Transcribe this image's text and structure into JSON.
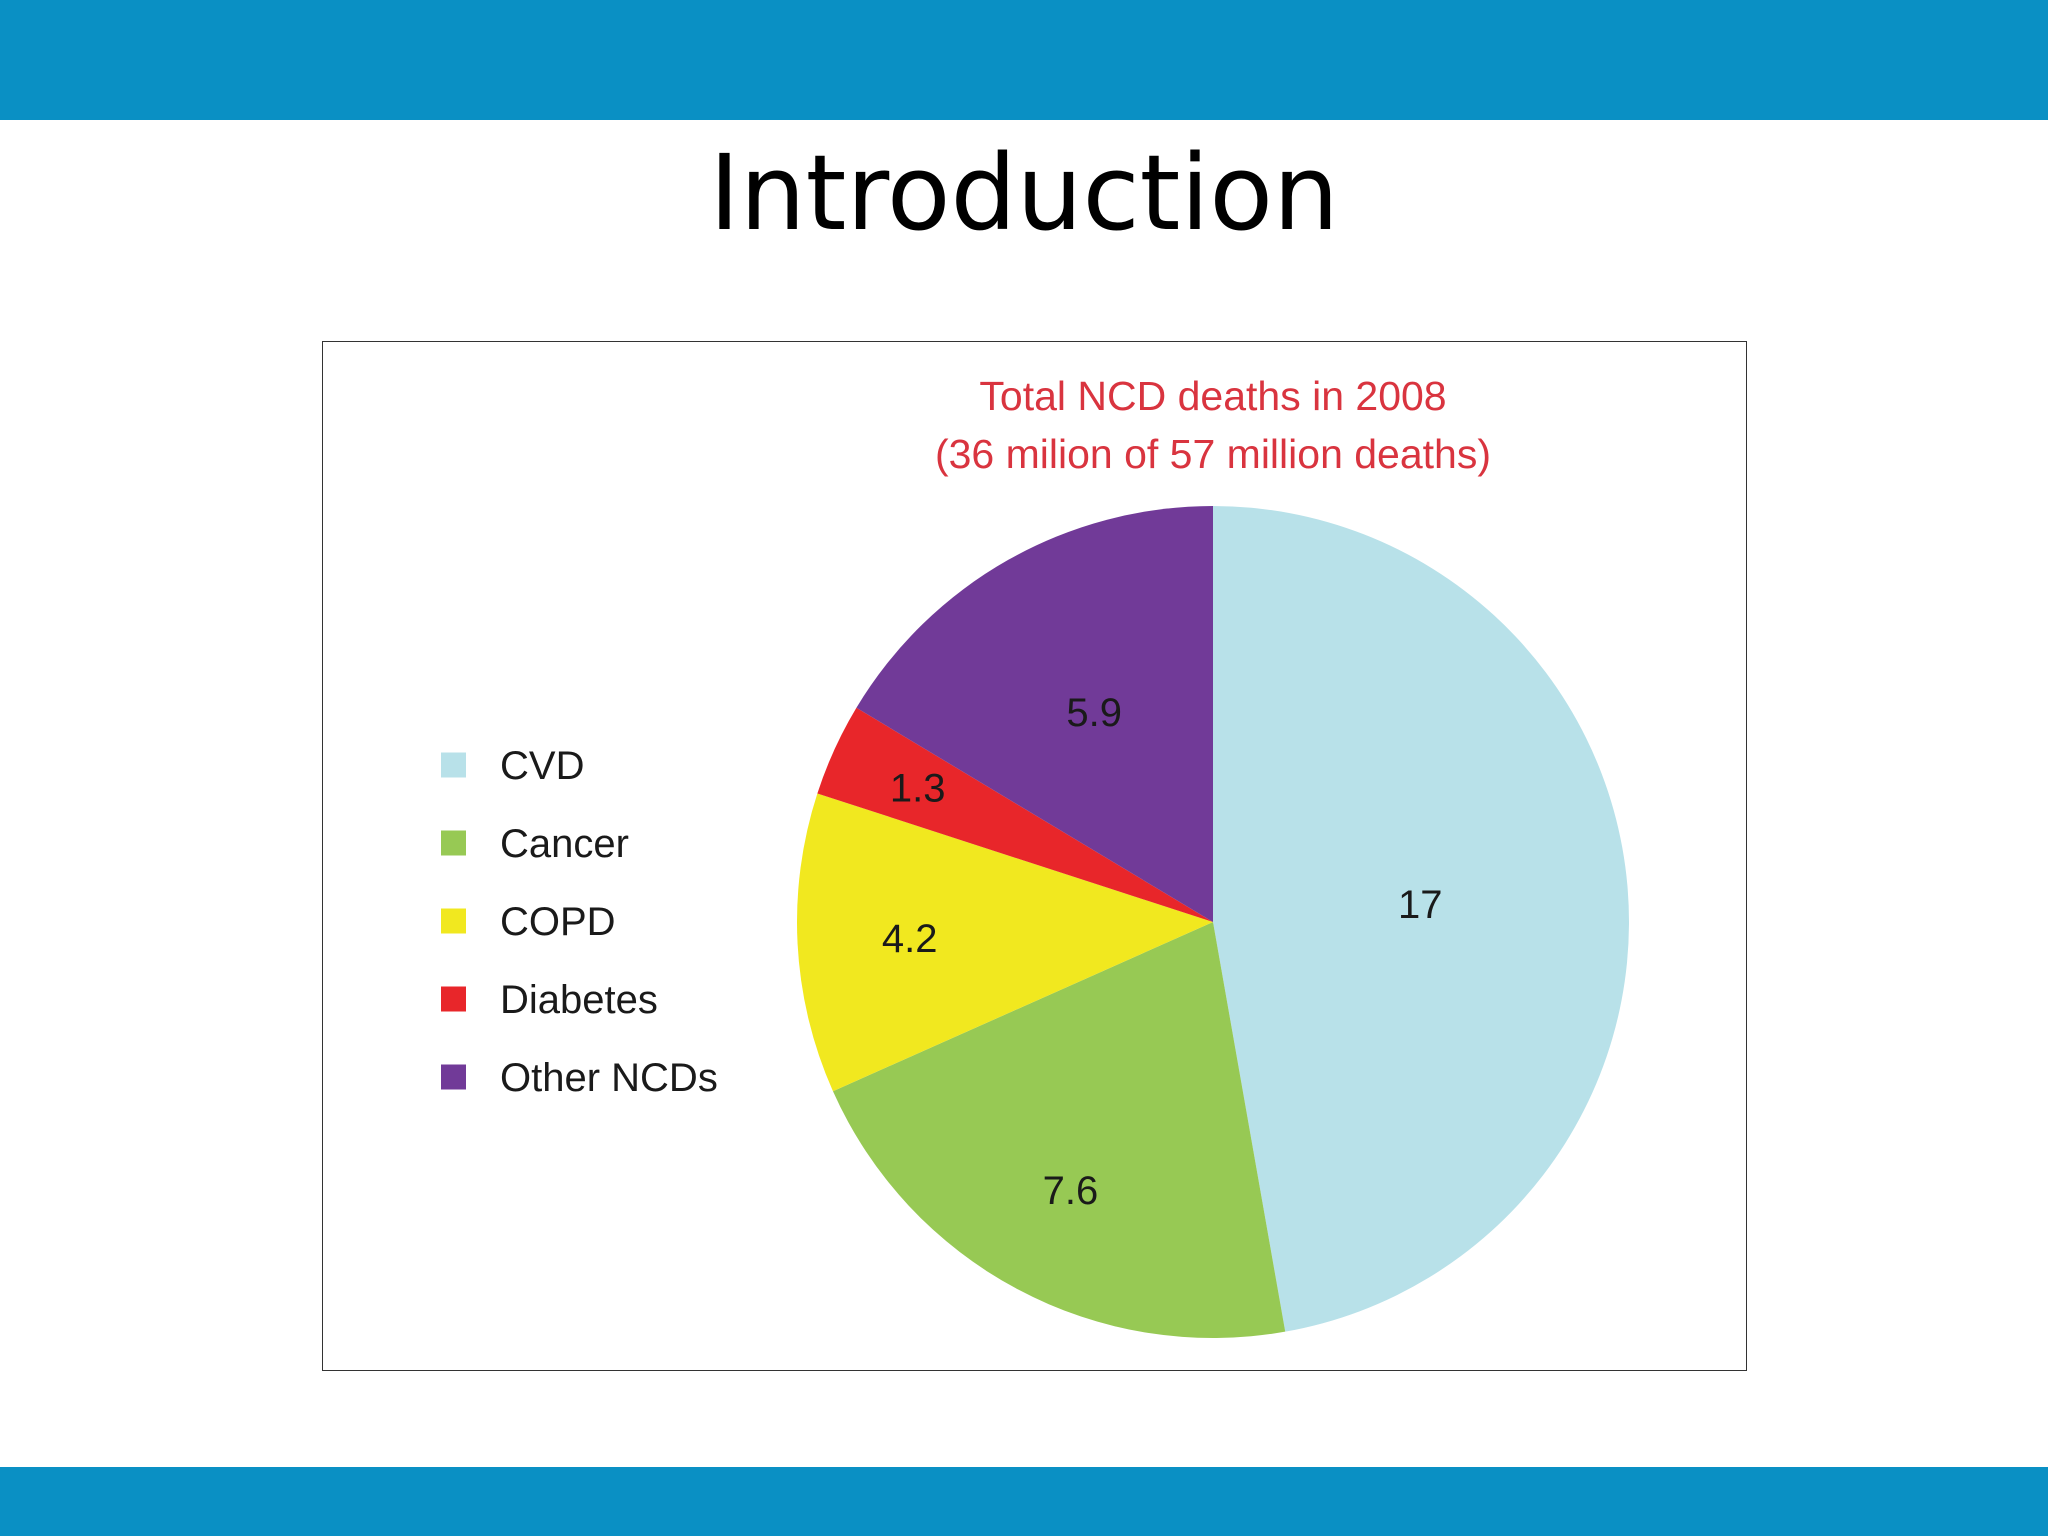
{
  "slide": {
    "title": "Introduction",
    "bar_color": "#0a90c4"
  },
  "chart_data": {
    "type": "pie",
    "title_lines": [
      "Total NCD deaths in 2008",
      "(36 milion of 57 million deaths)"
    ],
    "title_color": "#d9343f",
    "legend_placement": "left",
    "start_angle_deg": 0,
    "direction": "clockwise",
    "slices": [
      {
        "name": "CVD",
        "value": 17,
        "label": "17",
        "color": "#b8e1e9"
      },
      {
        "name": "Cancer",
        "value": 7.6,
        "label": "7.6",
        "color": "#97c954"
      },
      {
        "name": "COPD",
        "value": 4.2,
        "label": "4.2",
        "color": "#f1e81f"
      },
      {
        "name": "Diabetes",
        "value": 1.3,
        "label": "1.3",
        "color": "#e8262a"
      },
      {
        "name": "Other NCDs",
        "value": 5.9,
        "label": "5.9",
        "color": "#713a98"
      }
    ]
  }
}
